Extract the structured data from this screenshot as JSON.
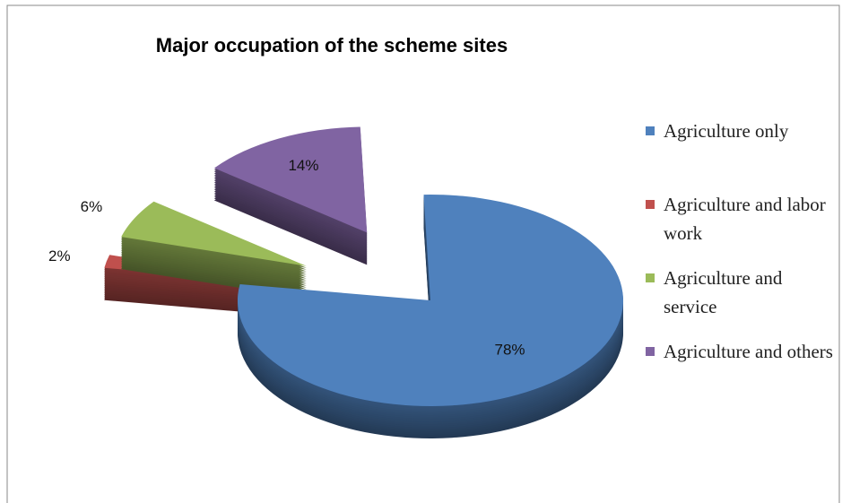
{
  "chart_data": {
    "type": "pie",
    "title": "Major occupation of the scheme sites",
    "categories": [
      "Agriculture only",
      "Agriculture and labor work",
      "Agriculture and service",
      "Agriculture and others"
    ],
    "values": [
      78,
      2,
      6,
      14
    ],
    "value_labels": [
      "78%",
      "2%",
      "6%",
      "14%"
    ],
    "colors": [
      "#4f81bd",
      "#c0504d",
      "#9bbb59",
      "#8064a2"
    ],
    "legend": "right"
  }
}
